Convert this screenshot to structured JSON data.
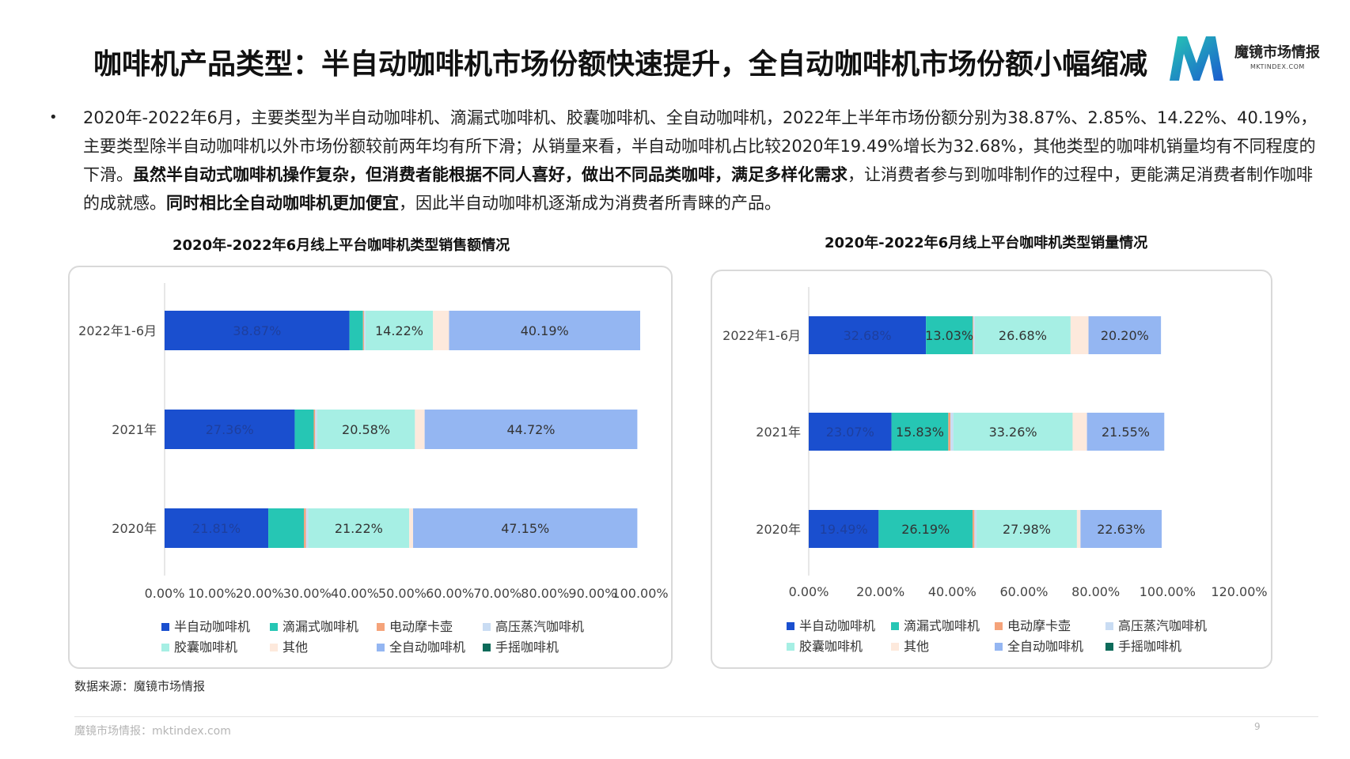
{
  "title": "咖啡机产品类型：半自动咖啡机市场份额快速提升，全自动咖啡机市场份额小幅缩减",
  "logo": {
    "name": "魔镜市场情报",
    "sub": "MKTINDEX.COM"
  },
  "bullet": "•",
  "paragraph": {
    "p1": "2020年-2022年6月，主要类型为半自动咖啡机、滴漏式咖啡机、胶囊咖啡机、全自动咖啡机，2022年上半年市场份额分别为38.87%、2.85%、14.22%、40.19%，主要类型除半自动咖啡机以外市场份额较前两年均有所下滑；从销量来看，半自动咖啡机占比较2020年19.49%增长为32.68%，其他类型的咖啡机销量均有不同程度的下滑。",
    "b1": "虽然半自动式咖啡机操作复杂，但消费者能根据不同人喜好，做出不同品类咖啡，满足多样化需求",
    "p2": "，让消费者参与到咖啡制作的过程中，更能满足消费者制作咖啡的成就感。",
    "b2": "同时相比全自动咖啡机更加便宜",
    "p3": "，因此半自动咖啡机逐渐成为消费者所青睐的产品。"
  },
  "source": "数据来源：魔镜市场情报",
  "footer": "魔镜市场情报：mktindex.com",
  "page_number": "9",
  "chart_data": [
    {
      "type": "bar",
      "orientation": "horizontal",
      "stacked": true,
      "title": "2020年-2022年6月线上平台咖啡机类型销售额情况",
      "categories": [
        "2022年1-6月",
        "2021年",
        "2020年"
      ],
      "xlim": [
        0,
        100
      ],
      "xticks": [
        "0.00%",
        "10.00%",
        "20.00%",
        "30.00%",
        "40.00%",
        "50.00%",
        "60.00%",
        "70.00%",
        "80.00%",
        "90.00%",
        "100.00%"
      ],
      "legend_position": "bottom",
      "series": [
        {
          "name": "半自动咖啡机",
          "color": "#1a4fcf",
          "values": [
            38.87,
            27.36,
            21.81
          ],
          "labels": [
            "38.87%",
            "27.36%",
            "21.81%"
          ]
        },
        {
          "name": "滴漏式咖啡机",
          "color": "#26c6b4",
          "values": [
            2.85,
            4.0,
            7.5
          ],
          "labels": [
            "",
            "",
            ""
          ]
        },
        {
          "name": "电动摩卡壶",
          "color": "#f5a37a",
          "values": [
            0.2,
            0.3,
            0.4
          ],
          "labels": [
            "",
            "",
            ""
          ]
        },
        {
          "name": "高压蒸汽咖啡机",
          "color": "#c9dcf3",
          "values": [
            0.3,
            0.4,
            0.5
          ],
          "labels": [
            "",
            "",
            ""
          ]
        },
        {
          "name": "胶囊咖啡机",
          "color": "#a6efe4",
          "values": [
            14.22,
            20.58,
            21.22
          ],
          "labels": [
            "14.22%",
            "20.58%",
            "21.22%"
          ]
        },
        {
          "name": "其他",
          "color": "#fde9dc",
          "values": [
            3.37,
            2.04,
            0.82
          ],
          "labels": [
            "",
            "",
            ""
          ]
        },
        {
          "name": "全自动咖啡机",
          "color": "#94b6f2",
          "values": [
            40.19,
            44.72,
            47.15
          ],
          "labels": [
            "40.19%",
            "44.72%",
            "47.15%"
          ]
        },
        {
          "name": "手摇咖啡机",
          "color": "#0d6b5a",
          "values": [
            0,
            0,
            0
          ],
          "labels": [
            "",
            "",
            ""
          ]
        }
      ]
    },
    {
      "type": "bar",
      "orientation": "horizontal",
      "stacked": true,
      "title": "2020年-2022年6月线上平台咖啡机类型销量情况",
      "categories": [
        "2022年1-6月",
        "2021年",
        "2020年"
      ],
      "xlim": [
        0,
        120
      ],
      "xticks": [
        "0.00%",
        "20.00%",
        "40.00%",
        "60.00%",
        "80.00%",
        "100.00%",
        "120.00%"
      ],
      "legend_position": "bottom",
      "series": [
        {
          "name": "半自动咖啡机",
          "color": "#1a4fcf",
          "values": [
            32.68,
            23.07,
            19.49
          ],
          "labels": [
            "32.68%",
            "23.07%",
            "19.49%"
          ]
        },
        {
          "name": "滴漏式咖啡机",
          "color": "#26c6b4",
          "values": [
            13.03,
            15.83,
            26.19
          ],
          "labels": [
            "13.03%",
            "15.83%",
            "26.19%"
          ]
        },
        {
          "name": "电动摩卡壶",
          "color": "#f5a37a",
          "values": [
            0.2,
            0.6,
            0.5
          ],
          "labels": [
            "",
            "",
            ""
          ]
        },
        {
          "name": "高压蒸汽咖啡机",
          "color": "#c9dcf3",
          "values": [
            0.4,
            0.8,
            0.6
          ],
          "labels": [
            "",
            "",
            ""
          ]
        },
        {
          "name": "胶囊咖啡机",
          "color": "#a6efe4",
          "values": [
            26.68,
            33.26,
            27.98
          ],
          "labels": [
            "26.68%",
            "33.26%",
            "27.98%"
          ]
        },
        {
          "name": "其他",
          "color": "#fde9dc",
          "values": [
            5.0,
            4.0,
            1.0
          ],
          "labels": [
            "",
            "",
            ""
          ]
        },
        {
          "name": "全自动咖啡机",
          "color": "#94b6f2",
          "values": [
            20.2,
            21.55,
            22.63
          ],
          "labels": [
            "20.20%",
            "21.55%",
            "22.63%"
          ]
        },
        {
          "name": "手摇咖啡机",
          "color": "#0d6b5a",
          "values": [
            0,
            0,
            0
          ],
          "labels": [
            "",
            "",
            ""
          ]
        }
      ]
    }
  ]
}
